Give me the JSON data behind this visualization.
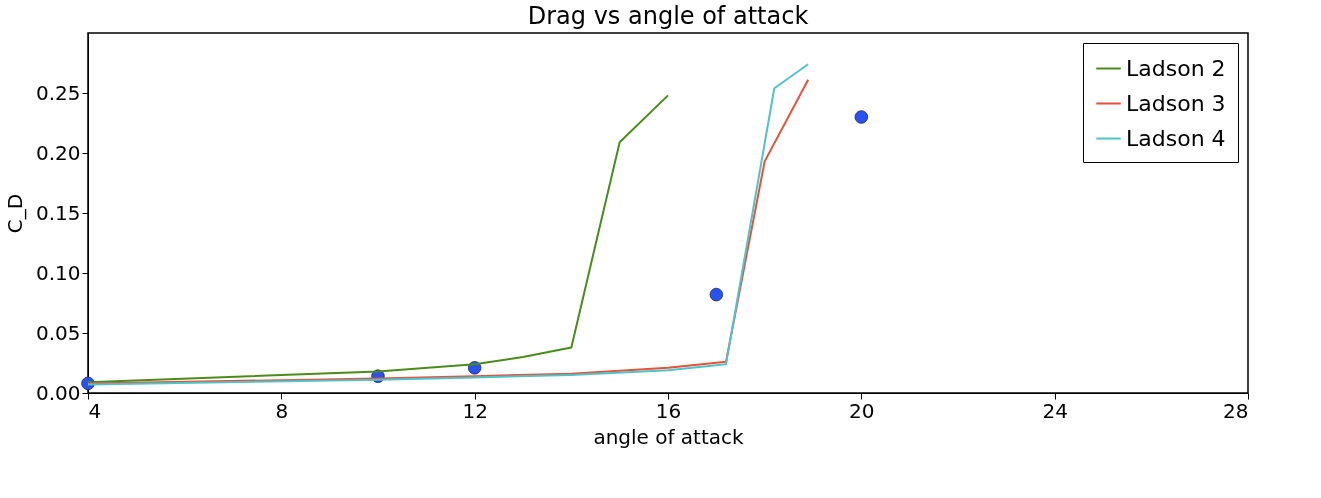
{
  "chart_data": {
    "type": "line",
    "title": "Drag vs angle of attack",
    "xlabel": "angle of attack",
    "ylabel": "C_D",
    "xlim": [
      4,
      28
    ],
    "xticks": [
      4,
      8,
      12,
      16,
      20,
      24,
      28
    ],
    "ylim": [
      0,
      0.3
    ],
    "yticks": [
      {
        "value": 0,
        "label": "0.00"
      },
      {
        "value": 0.05,
        "label": "0.05"
      },
      {
        "value": 0.1,
        "label": "0.10"
      },
      {
        "value": 0.15,
        "label": "0.15"
      },
      {
        "value": 0.2,
        "label": "0.20"
      },
      {
        "value": 0.25,
        "label": "0.25"
      }
    ],
    "grid": false,
    "legend": "top right",
    "series": [
      {
        "type": "scatter",
        "marker": "circle",
        "color": "#2a52f0",
        "x": [
          4,
          10,
          12,
          17,
          20
        ],
        "values": [
          0.008,
          0.014,
          0.021,
          0.082,
          0.23
        ]
      },
      {
        "name": "Ladson 2",
        "color": "#4a8c1c",
        "x": [
          4,
          10,
          12,
          13,
          14,
          15,
          16
        ],
        "values": [
          0.009,
          0.018,
          0.024,
          0.03,
          0.038,
          0.209,
          0.248
        ]
      },
      {
        "name": "Ladson 3",
        "color": "#e8503a",
        "x": [
          4,
          10,
          12,
          14,
          16,
          17.2,
          18,
          18.9
        ],
        "values": [
          0.008,
          0.012,
          0.014,
          0.016,
          0.021,
          0.026,
          0.193,
          0.261
        ]
      },
      {
        "name": "Ladson 4",
        "color": "#4fc4c8",
        "x": [
          4,
          10,
          12,
          14,
          16,
          17.2,
          18.2,
          18.9
        ],
        "values": [
          0.007,
          0.011,
          0.013,
          0.015,
          0.019,
          0.024,
          0.254,
          0.274
        ]
      }
    ]
  }
}
